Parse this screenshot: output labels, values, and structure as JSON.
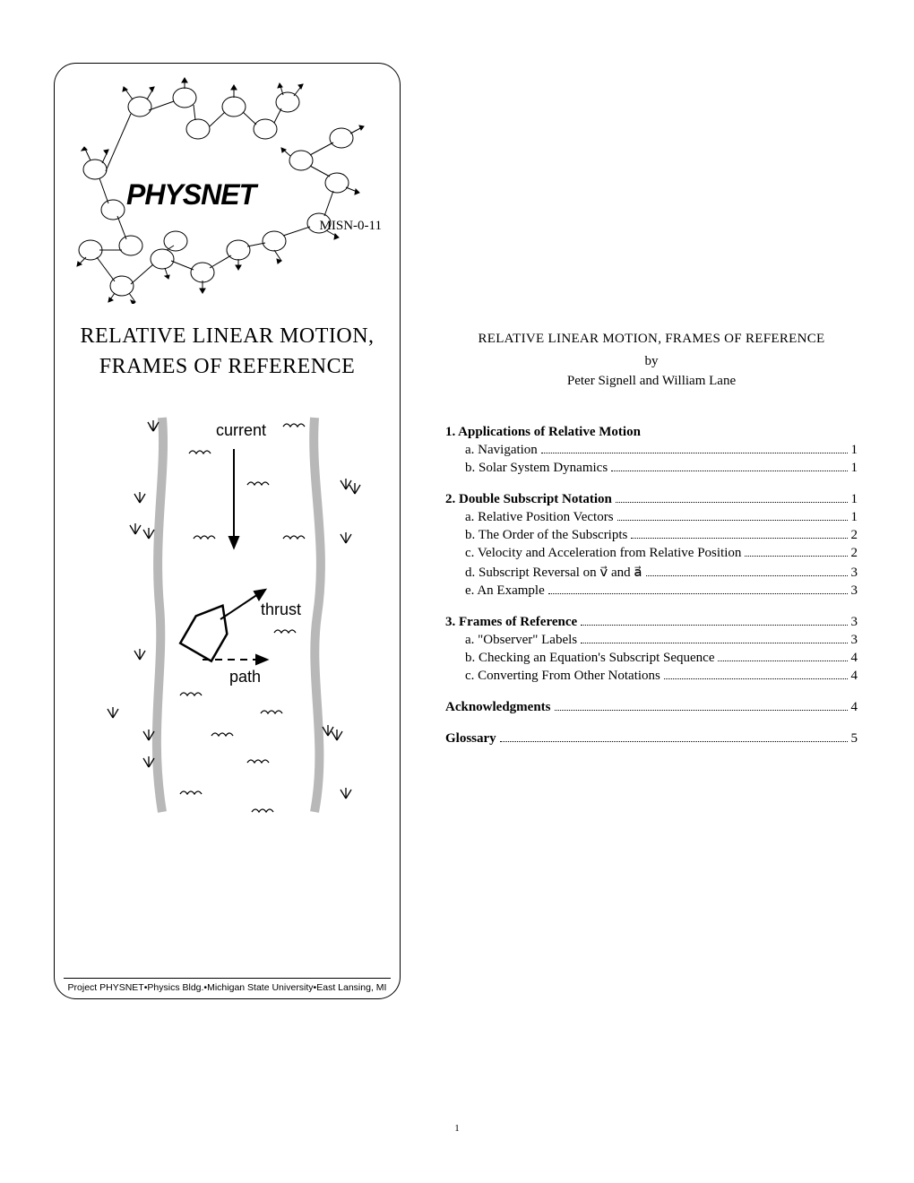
{
  "cover": {
    "logo_text": "PHYSNET",
    "misn": "MISN-0-11",
    "title_line1": "RELATIVE LINEAR MOTION,",
    "title_line2": "FRAMES OF REFERENCE",
    "diagram": {
      "label_current": "current",
      "label_thrust": "thrust",
      "label_path": "path",
      "river_color": "#b8b8b8",
      "wave_color": "#000000",
      "grass_color": "#000000"
    },
    "footer": "Project PHYSNET•Physics Bldg.•Michigan State University•East Lansing, MI"
  },
  "right": {
    "title": "RELATIVE LINEAR MOTION, FRAMES OF REFERENCE",
    "by": "by",
    "authors": "Peter Signell and William Lane"
  },
  "toc": {
    "sections": [
      {
        "num": "1.",
        "title": "Applications of Relative Motion",
        "page": "",
        "items": [
          {
            "letter": "a.",
            "title": "Navigation",
            "page": "1"
          },
          {
            "letter": "b.",
            "title": "Solar System Dynamics",
            "page": "1"
          }
        ]
      },
      {
        "num": "2.",
        "title": "Double Subscript Notation",
        "page": "1",
        "items": [
          {
            "letter": "a.",
            "title": "Relative Position Vectors",
            "page": "1"
          },
          {
            "letter": "b.",
            "title": "The Order of the Subscripts",
            "page": "2"
          },
          {
            "letter": "c.",
            "title": "Velocity and Acceleration from Relative Position",
            "page": "2"
          },
          {
            "letter": "d.",
            "title": "Subscript Reversal on v⃗ and a⃗",
            "page": "3"
          },
          {
            "letter": "e.",
            "title": "An Example",
            "page": "3"
          }
        ]
      },
      {
        "num": "3.",
        "title": "Frames of Reference",
        "page": "3",
        "items": [
          {
            "letter": "a.",
            "title": "\"Observer\" Labels",
            "page": "3"
          },
          {
            "letter": "b.",
            "title": "Checking an Equation's Subscript Sequence",
            "page": "4"
          },
          {
            "letter": "c.",
            "title": "Converting From Other Notations",
            "page": "4"
          }
        ]
      }
    ],
    "extras": [
      {
        "title": "Acknowledgments",
        "page": "4"
      },
      {
        "title": "Glossary",
        "page": "5"
      }
    ]
  },
  "page_number": "1"
}
